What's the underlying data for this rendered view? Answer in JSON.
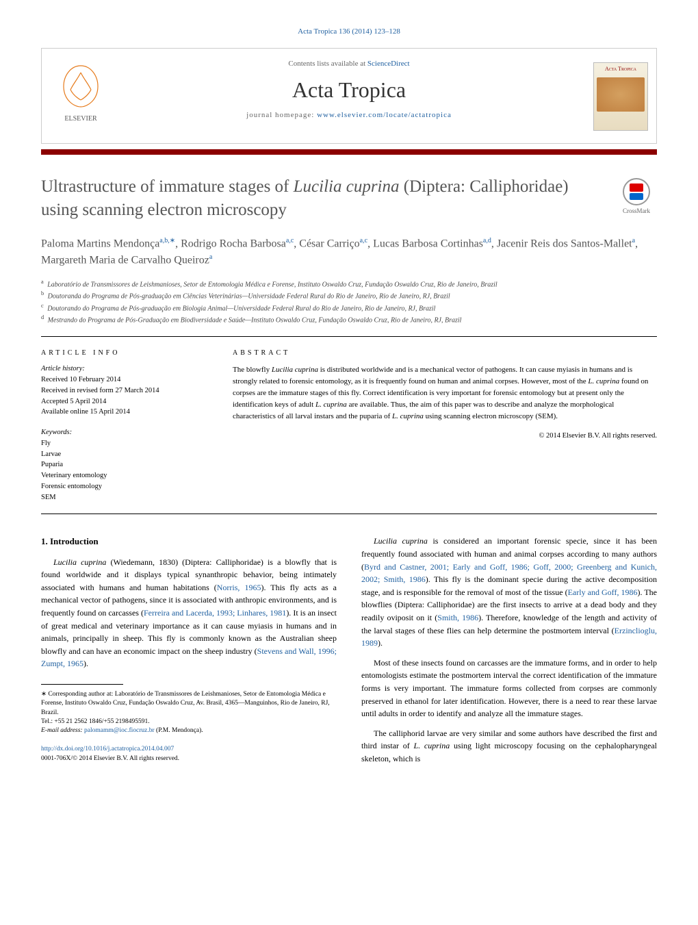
{
  "citation": "Acta Tropica 136 (2014) 123–128",
  "header": {
    "contents_prefix": "Contents lists available at ",
    "contents_link": "ScienceDirect",
    "journal": "Acta Tropica",
    "homepage_prefix": "journal homepage: ",
    "homepage_url": "www.elsevier.com/locate/actatropica",
    "elsevier": "ELSEVIER",
    "cover_title": "Acta Tropica"
  },
  "crossmark_label": "CrossMark",
  "title_html": "Ultrastructure of immature stages of <em>Lucilia cuprina</em> (Diptera: Calliphoridae) using scanning electron microscopy",
  "authors_html": "Paloma Martins Mendonça<sup>a,b,∗</sup>, Rodrigo Rocha Barbosa<sup>a,c</sup>, César Carriço<sup>a,c</sup>, Lucas Barbosa Cortinhas<sup>a,d</sup>, Jacenir Reis dos Santos-Mallet<sup>a</sup>, Margareth Maria de Carvalho Queiroz<sup>a</sup>",
  "affiliations": [
    {
      "sup": "a",
      "text": "Laboratório de Transmissores de Leishmanioses, Setor de Entomologia Médica e Forense, Instituto Oswaldo Cruz, Fundação Oswaldo Cruz, Rio de Janeiro, Brazil"
    },
    {
      "sup": "b",
      "text": "Doutoranda do Programa de Pós-graduação em Ciências Veterinárias—Universidade Federal Rural do Rio de Janeiro, Rio de Janeiro, RJ, Brazil"
    },
    {
      "sup": "c",
      "text": "Doutorando do Programa de Pós-graduação em Biologia Animal—Universidade Federal Rural do Rio de Janeiro, Rio de Janeiro, RJ, Brazil"
    },
    {
      "sup": "d",
      "text": "Mestrando do Programa de Pós-Graduação em Biodiversidade e Saúde—Instituto Oswaldo Cruz, Fundação Oswaldo Cruz, Rio de Janeiro, RJ, Brazil"
    }
  ],
  "article_info": {
    "head": "article info",
    "history_head": "Article history:",
    "history": [
      "Received 10 February 2014",
      "Received in revised form 27 March 2014",
      "Accepted 5 April 2014",
      "Available online 15 April 2014"
    ],
    "kw_head": "Keywords:",
    "keywords": [
      "Fly",
      "Larvae",
      "Puparia",
      "Veterinary entomology",
      "Forensic entomology",
      "SEM"
    ]
  },
  "abstract": {
    "head": "abstract",
    "text_html": "The blowfly <em>Lucilia cuprina</em> is distributed worldwide and is a mechanical vector of pathogens. It can cause myiasis in humans and is strongly related to forensic entomology, as it is frequently found on human and animal corpses. However, most of the <em>L. cuprina</em> found on corpses are the immature stages of this fly. Correct identification is very important for forensic entomology but at present only the identification keys of adult <em>L. cuprina</em> are available. Thus, the aim of this paper was to describe and analyze the morphological characteristics of all larval instars and the puparia of <em>L. cuprina</em> using scanning electron microscopy (SEM).",
    "copyright": "© 2014 Elsevier B.V. All rights reserved."
  },
  "intro": {
    "heading": "1. Introduction",
    "p1_html": "<em>Lucilia cuprina</em> (Wiedemann, 1830) (Diptera: Calliphoridae) is a blowfly that is found worldwide and it displays typical synanthropic behavior, being intimately associated with humans and human habitations (<a>Norris, 1965</a>). This fly acts as a mechanical vector of pathogens, since it is associated with anthropic environments, and is frequently found on carcasses (<a>Ferreira and Lacerda, 1993; Linhares, 1981</a>). It is an insect of great medical and veterinary importance as it can cause myiasis in humans and in animals, principally in sheep. This fly is commonly known as the Australian sheep blowfly and can have an economic impact on the sheep industry (<a>Stevens and Wall, 1996; Zumpt, 1965</a>).",
    "p2_html": "<em>Lucilia cuprina</em> is considered an important forensic specie, since it has been frequently found associated with human and animal corpses according to many authors (<a>Byrd and Castner, 2001; Early and Goff, 1986; Goff, 2000; Greenberg and Kunich, 2002; Smith, 1986</a>). This fly is the dominant specie during the active decomposition stage, and is responsible for the removal of most of the tissue (<a>Early and Goff, 1986</a>). The blowflies (Diptera: Calliphoridae) are the first insects to arrive at a dead body and they readily oviposit on it (<a>Smith, 1986</a>). Therefore, knowledge of the length and activity of the larval stages of these flies can help determine the postmortem interval (<a>Erzinclioglu, 1989</a>).",
    "p3_html": "Most of these insects found on carcasses are the immature forms, and in order to help entomologists estimate the postmortem interval the correct identification of the immature forms is very important. The immature forms collected from corpses are commonly preserved in ethanol for later identification. However, there is a need to rear these larvae until adults in order to identify and analyze all the immature stages.",
    "p4_html": "The calliphorid larvae are very similar and some authors have described the first and third instar of <em>L. cuprina</em> using light microscopy focusing on the cephalopharyngeal skeleton, which is"
  },
  "footnotes": {
    "corr_html": "∗ Corresponding author at: Laboratório de Transmissores de Leishmanioses, Setor de Entomologia Médica e Forense, Instituto Oswaldo Cruz, Fundação Oswaldo Cruz, Av. Brasil, 4365—Manguinhos, Rio de Janeiro, RJ, Brazil.",
    "tel": "Tel.: +55 21 2562 1846/+55 2198495591.",
    "email_label": "E-mail address: ",
    "email": "palomamm@ioc.fiocruz.br",
    "email_name": " (P.M. Mendonça)."
  },
  "footer": {
    "doi": "http://dx.doi.org/10.1016/j.actatropica.2014.04.007",
    "issn": "0001-706X/© 2014 Elsevier B.V. All rights reserved."
  },
  "colors": {
    "link": "#2060a0",
    "accent_bar": "#8b0000",
    "title_gray": "#555555"
  }
}
